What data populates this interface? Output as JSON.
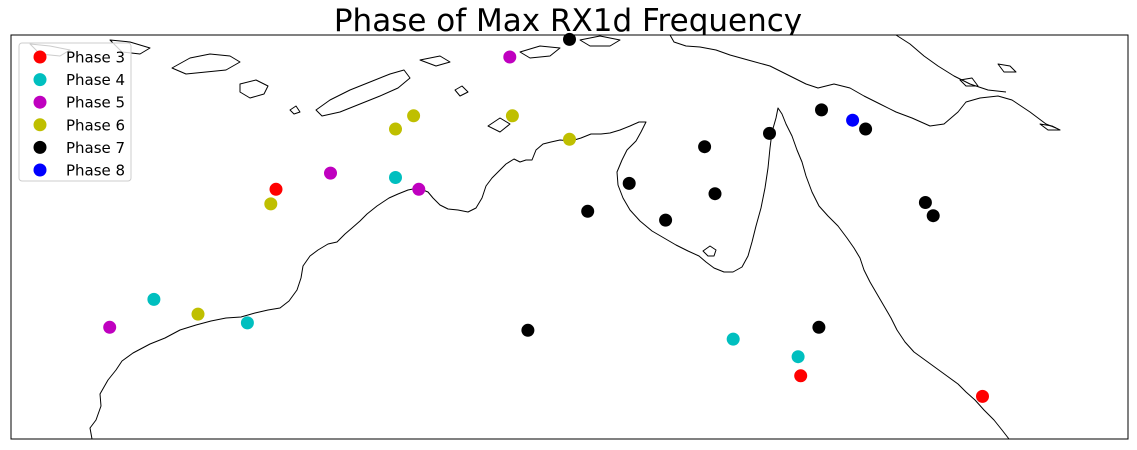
{
  "chart_data": {
    "type": "scatter",
    "title": "Phase of Max RX1d Frequency",
    "xlabel": "",
    "ylabel": "",
    "xlim": [
      112,
      155
    ],
    "ylim": [
      -35,
      -7.5
    ],
    "grid": false,
    "legend_position": "top-left",
    "basemap": "coastlines",
    "series": [
      {
        "name": "Phase 3",
        "color": "#ff0000",
        "points": [
          [
            122.2,
            -18.0
          ],
          [
            142.4,
            -30.7
          ],
          [
            149.4,
            -32.1
          ]
        ]
      },
      {
        "name": "Phase 4",
        "color": "#00bfbf",
        "points": [
          [
            117.5,
            -25.5
          ],
          [
            121.1,
            -27.1
          ],
          [
            126.8,
            -17.2
          ],
          [
            139.8,
            -28.2
          ],
          [
            142.3,
            -29.4
          ]
        ]
      },
      {
        "name": "Phase 5",
        "color": "#bf00bf",
        "points": [
          [
            115.8,
            -27.4
          ],
          [
            124.3,
            -16.9
          ],
          [
            127.7,
            -18.0
          ],
          [
            131.2,
            -9.0
          ]
        ]
      },
      {
        "name": "Phase 6",
        "color": "#bfbf00",
        "points": [
          [
            119.2,
            -26.5
          ],
          [
            122.0,
            -19.0
          ],
          [
            126.8,
            -13.9
          ],
          [
            127.5,
            -13.0
          ],
          [
            131.3,
            -13.0
          ],
          [
            133.5,
            -14.6
          ]
        ]
      },
      {
        "name": "Phase 7",
        "color": "#000000",
        "points": [
          [
            133.5,
            -7.8
          ],
          [
            138.7,
            -15.1
          ],
          [
            141.2,
            -14.2
          ],
          [
            143.2,
            -12.6
          ],
          [
            144.9,
            -13.9
          ],
          [
            147.2,
            -18.9
          ],
          [
            147.5,
            -19.8
          ],
          [
            134.2,
            -19.5
          ],
          [
            135.8,
            -17.6
          ],
          [
            137.2,
            -20.1
          ],
          [
            139.1,
            -18.3
          ],
          [
            131.9,
            -27.6
          ],
          [
            143.1,
            -27.4
          ]
        ]
      },
      {
        "name": "Phase 8",
        "color": "#0000ff",
        "points": [
          [
            144.4,
            -13.3
          ]
        ]
      }
    ]
  }
}
